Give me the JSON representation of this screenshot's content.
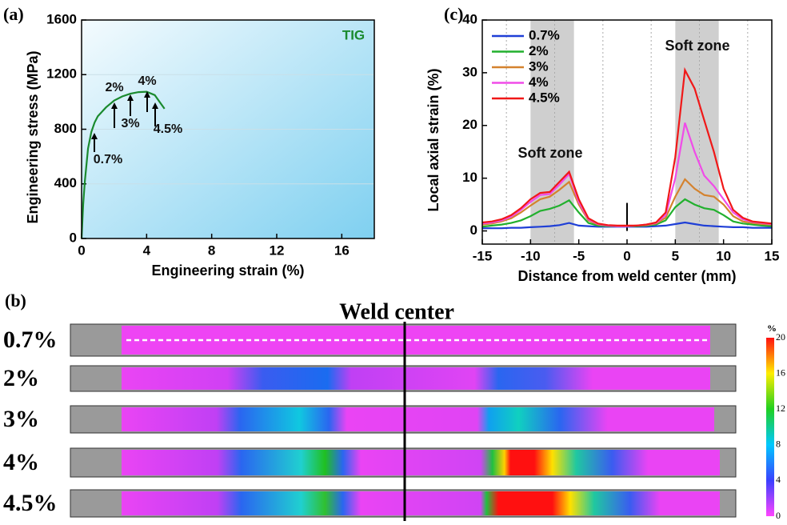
{
  "chart_data": [
    {
      "type": "line",
      "panel_label": "(a)",
      "xlabel": "Engineering strain (%)",
      "ylabel": "Engineering stress (MPa)",
      "x": [
        0,
        0.1,
        0.2,
        0.4,
        0.6,
        0.8,
        1,
        1.5,
        2,
        2.5,
        3,
        3.5,
        4,
        4.5,
        4.8,
        5.1
      ],
      "values": [
        0,
        250,
        420,
        660,
        780,
        850,
        895,
        960,
        1010,
        1040,
        1060,
        1072,
        1075,
        1050,
        1000,
        950
      ],
      "color": "#1a8a2e",
      "xlim": [
        0,
        18
      ],
      "xticks": [
        0,
        4,
        8,
        12,
        16
      ],
      "ylim": [
        0,
        1600
      ],
      "yticks": [
        0,
        400,
        800,
        1200,
        1600
      ],
      "grid": true,
      "annotations": [
        "TIG",
        "0.7%",
        "2%",
        "3%",
        "4%",
        "4.5%"
      ]
    },
    {
      "type": "line",
      "panel_label": "(c)",
      "xlabel": "Distance from weld center (mm)",
      "ylabel": "Local axial strain (%)",
      "x": [
        -15,
        -14,
        -13,
        -12,
        -11,
        -10,
        -9,
        -8,
        -7,
        -6,
        -5,
        -4,
        -3,
        -2,
        -1,
        0,
        1,
        2,
        3,
        4,
        5,
        6,
        7,
        8,
        9,
        10,
        11,
        12,
        13,
        14,
        15
      ],
      "series": [
        {
          "name": "0.7%",
          "color": "#1f3fd6",
          "values": [
            0.5,
            0.5,
            0.5,
            0.6,
            0.6,
            0.7,
            0.8,
            0.9,
            1.1,
            1.5,
            1.0,
            0.9,
            0.8,
            0.8,
            0.8,
            0.8,
            0.8,
            0.8,
            0.9,
            1.0,
            1.3,
            1.6,
            1.3,
            1.0,
            0.9,
            0.8,
            0.7,
            0.7,
            0.6,
            0.6,
            0.6
          ]
        },
        {
          "name": "2%",
          "color": "#22b02e",
          "values": [
            0.8,
            1.0,
            1.2,
            1.5,
            2.0,
            2.8,
            3.8,
            4.2,
            4.8,
            5.8,
            3.5,
            1.5,
            1.0,
            0.9,
            0.9,
            0.9,
            0.9,
            1.0,
            1.2,
            2.0,
            4.5,
            6.0,
            5.0,
            4.3,
            4.0,
            3.0,
            1.8,
            1.4,
            1.2,
            1.0,
            0.9
          ]
        },
        {
          "name": "3%",
          "color": "#d4822e",
          "values": [
            1.2,
            1.4,
            1.8,
            2.4,
            3.5,
            4.8,
            6.0,
            6.5,
            7.8,
            9.3,
            5.0,
            2.0,
            1.2,
            1.0,
            0.9,
            0.9,
            1.0,
            1.1,
            1.4,
            2.5,
            6.5,
            9.8,
            8.0,
            6.8,
            6.5,
            5.0,
            2.8,
            1.8,
            1.5,
            1.3,
            1.2
          ]
        },
        {
          "name": "4%",
          "color": "#f04ce8",
          "values": [
            1.4,
            1.6,
            2.0,
            2.7,
            4.0,
            5.5,
            6.8,
            7.0,
            8.8,
            10.8,
            5.5,
            2.2,
            1.3,
            1.0,
            0.9,
            0.9,
            1.0,
            1.2,
            1.5,
            3.0,
            10.0,
            20.5,
            15.0,
            10.5,
            8.5,
            6.0,
            3.5,
            2.2,
            1.7,
            1.5,
            1.3
          ]
        },
        {
          "name": "4.5%",
          "color": "#f01818",
          "values": [
            1.6,
            1.8,
            2.2,
            3.0,
            4.3,
            6.0,
            7.2,
            7.4,
            9.3,
            11.2,
            6.0,
            2.4,
            1.4,
            1.1,
            1.0,
            1.0,
            1.0,
            1.2,
            1.6,
            3.5,
            14.0,
            30.5,
            27.0,
            21.0,
            15.0,
            8.0,
            4.0,
            2.5,
            1.8,
            1.6,
            1.4
          ]
        }
      ],
      "xlim": [
        -15,
        15
      ],
      "xticks": [
        -15,
        -10,
        -5,
        0,
        5,
        10,
        15
      ],
      "ylim": [
        -2.5,
        40
      ],
      "yticks": [
        0,
        10,
        20,
        30,
        40
      ],
      "x_minor_grid": [
        -12.5,
        -7.5,
        -2.5,
        2.5,
        7.5,
        12.5
      ],
      "shaded_regions": [
        [
          -10,
          -5.5
        ],
        [
          5,
          9.5
        ]
      ],
      "legend": "upper left",
      "annotations": [
        "Soft zone",
        "Soft zone"
      ]
    }
  ],
  "strain_maps": {
    "panel_label": "(b)",
    "title": "Weld center",
    "rows": [
      "0.7%",
      "2%",
      "3%",
      "4%",
      "4.5%"
    ],
    "colorbar": {
      "unit": "%",
      "range": [
        0,
        20
      ],
      "ticks": [
        0,
        4,
        8,
        12,
        16,
        20
      ]
    }
  }
}
